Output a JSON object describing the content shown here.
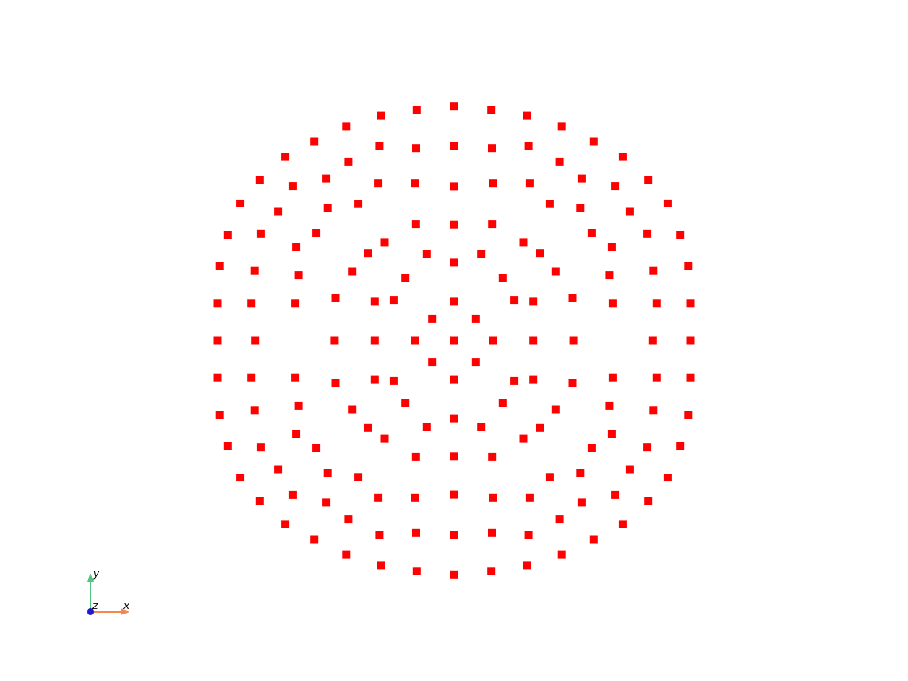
{
  "scene": {
    "background": "#ffffff"
  },
  "chart_data": {
    "type": "scatter",
    "title": "",
    "xlabel": "",
    "ylabel": "",
    "grid": false,
    "marker": "square",
    "color": "#ff0000",
    "xlim": [
      -1.0,
      1.0
    ],
    "ylim": [
      -1.0,
      1.0
    ],
    "x": [
      -0.6406,
      -0.5141,
      -0.3618,
      -0.1545,
      0.0,
      0.1545,
      0.3059,
      0.4554,
      0.5915,
      0.7206,
      0.8252,
      0.911,
      0.9672,
      0.9982,
      -0.6406,
      -0.5141,
      -0.3618,
      -0.1545,
      0.0,
      0.1545,
      0.3059,
      0.4554,
      0.5915,
      0.7206,
      0.8252,
      0.911,
      0.9672,
      0.9982,
      -0.6406,
      -0.5141,
      -0.3618,
      -0.1545,
      0.0,
      0.1545,
      0.3059,
      0.4554,
      0.5915,
      0.7206,
      0.8252,
      0.911,
      0.9672,
      0.9982
    ],
    "y": [
      0.0,
      0.0,
      0.0,
      0.0,
      0.0,
      0.0,
      0.0,
      0.0,
      0.0,
      0.0,
      0.0,
      0.0,
      0.0,
      0.0,
      0.0,
      0.0,
      0.0,
      0.0,
      0.0,
      0.0,
      0.0,
      0.0,
      0.0,
      0.0,
      0.0,
      0.0,
      0.0,
      0.0,
      0.0,
      0.0,
      0.0,
      0.0,
      0.0,
      0.0,
      0.0,
      0.0,
      0.0,
      0.0,
      0.0,
      0.0,
      0.0,
      0.0
    ],
    "points": [
      [
        0.0,
        -0.99
      ],
      [
        0.156,
        -0.973
      ],
      [
        0.309,
        -0.951
      ],
      [
        -0.156,
        -0.973
      ],
      [
        -0.309,
        -0.951
      ],
      [
        0.454,
        -0.903
      ],
      [
        0.589,
        -0.839
      ],
      [
        -0.454,
        -0.903
      ],
      [
        -0.589,
        -0.839
      ],
      [
        0.713,
        -0.775
      ],
      [
        0.819,
        -0.676
      ],
      [
        -0.713,
        -0.775
      ],
      [
        -0.819,
        -0.676
      ],
      [
        0.904,
        -0.579
      ],
      [
        0.954,
        -0.446
      ],
      [
        -0.904,
        -0.579
      ],
      [
        -0.954,
        -0.446
      ],
      [
        0.988,
        -0.313
      ],
      [
        1.0,
        -0.158
      ],
      [
        -0.988,
        -0.313
      ],
      [
        -1.0,
        -0.158
      ],
      [
        1.0,
        0.158
      ],
      [
        0.988,
        0.313
      ],
      [
        -1.0,
        0.158
      ],
      [
        -0.988,
        0.313
      ],
      [
        0.954,
        0.446
      ],
      [
        0.904,
        0.579
      ],
      [
        -0.954,
        0.446
      ],
      [
        -0.904,
        0.579
      ],
      [
        0.819,
        0.676
      ],
      [
        0.713,
        0.775
      ],
      [
        -0.819,
        0.676
      ],
      [
        -0.713,
        0.775
      ],
      [
        0.589,
        0.839
      ],
      [
        0.454,
        0.903
      ],
      [
        -0.589,
        0.839
      ],
      [
        -0.454,
        0.903
      ],
      [
        0.309,
        0.951
      ],
      [
        0.156,
        0.973
      ],
      [
        -0.309,
        0.951
      ],
      [
        -0.156,
        0.973
      ],
      [
        0.0,
        0.99
      ],
      [
        1.0,
        0.0
      ],
      [
        -1.0,
        0.0
      ],
      [
        0.0,
        -0.822
      ],
      [
        0.159,
        -0.814
      ],
      [
        -0.159,
        -0.814
      ],
      [
        0.315,
        -0.822
      ],
      [
        -0.315,
        -0.822
      ],
      [
        0.446,
        -0.755
      ],
      [
        -0.446,
        -0.755
      ],
      [
        0.541,
        -0.685
      ],
      [
        -0.541,
        -0.685
      ],
      [
        0.68,
        -0.653
      ],
      [
        -0.68,
        -0.653
      ],
      [
        0.743,
        -0.543
      ],
      [
        -0.743,
        -0.543
      ],
      [
        0.815,
        -0.452
      ],
      [
        -0.815,
        -0.452
      ],
      [
        0.842,
        -0.295
      ],
      [
        -0.842,
        -0.295
      ],
      [
        0.855,
        -0.158
      ],
      [
        -0.855,
        -0.158
      ],
      [
        0.84,
        0.0
      ],
      [
        -0.84,
        0.0
      ],
      [
        0.855,
        0.158
      ],
      [
        -0.855,
        0.158
      ],
      [
        0.842,
        0.295
      ],
      [
        -0.842,
        0.295
      ],
      [
        0.815,
        0.452
      ],
      [
        -0.815,
        0.452
      ],
      [
        0.743,
        0.543
      ],
      [
        -0.743,
        0.543
      ],
      [
        0.68,
        0.653
      ],
      [
        -0.68,
        0.653
      ],
      [
        0.541,
        0.685
      ],
      [
        -0.541,
        0.685
      ],
      [
        0.446,
        0.755
      ],
      [
        -0.446,
        0.755
      ],
      [
        0.315,
        0.822
      ],
      [
        -0.315,
        0.822
      ],
      [
        0.159,
        0.814
      ],
      [
        -0.159,
        0.814
      ],
      [
        0.0,
        0.822
      ],
      [
        0.0,
        -0.652
      ],
      [
        0.165,
        -0.664
      ],
      [
        -0.165,
        -0.664
      ],
      [
        0.32,
        -0.664
      ],
      [
        -0.32,
        -0.664
      ],
      [
        0.406,
        -0.576
      ],
      [
        -0.406,
        -0.576
      ],
      [
        0.535,
        -0.56
      ],
      [
        -0.535,
        -0.56
      ],
      [
        0.582,
        -0.455
      ],
      [
        -0.582,
        -0.455
      ],
      [
        0.668,
        -0.395
      ],
      [
        -0.668,
        -0.395
      ],
      [
        0.655,
        -0.275
      ],
      [
        -0.655,
        -0.275
      ],
      [
        0.672,
        -0.158
      ],
      [
        -0.672,
        -0.158
      ],
      [
        0.672,
        0.158
      ],
      [
        -0.672,
        0.158
      ],
      [
        0.655,
        0.275
      ],
      [
        -0.655,
        0.275
      ],
      [
        0.668,
        0.395
      ],
      [
        -0.668,
        0.395
      ],
      [
        0.582,
        0.455
      ],
      [
        -0.582,
        0.455
      ],
      [
        0.535,
        0.56
      ],
      [
        -0.535,
        0.56
      ],
      [
        0.406,
        0.576
      ],
      [
        -0.406,
        0.576
      ],
      [
        0.32,
        0.664
      ],
      [
        -0.32,
        0.664
      ],
      [
        0.165,
        0.664
      ],
      [
        -0.165,
        0.664
      ],
      [
        0.0,
        0.652
      ],
      [
        0.0,
        -0.49
      ],
      [
        0.16,
        -0.492
      ],
      [
        -0.16,
        -0.492
      ],
      [
        0.292,
        -0.416
      ],
      [
        -0.292,
        -0.416
      ],
      [
        0.365,
        -0.368
      ],
      [
        -0.365,
        -0.368
      ],
      [
        0.428,
        -0.292
      ],
      [
        -0.428,
        -0.292
      ],
      [
        0.502,
        -0.178
      ],
      [
        -0.502,
        -0.178
      ],
      [
        0.506,
        0.0
      ],
      [
        -0.506,
        0.0
      ],
      [
        0.502,
        0.178
      ],
      [
        -0.502,
        0.178
      ],
      [
        0.428,
        0.292
      ],
      [
        -0.428,
        0.292
      ],
      [
        0.365,
        0.368
      ],
      [
        -0.365,
        0.368
      ],
      [
        0.292,
        0.416
      ],
      [
        -0.292,
        0.416
      ],
      [
        0.16,
        0.492
      ],
      [
        -0.16,
        0.492
      ],
      [
        0.0,
        0.49
      ],
      [
        0.0,
        -0.33
      ],
      [
        0.115,
        -0.365
      ],
      [
        -0.115,
        -0.365
      ],
      [
        0.207,
        -0.264
      ],
      [
        -0.207,
        -0.264
      ],
      [
        0.253,
        -0.17
      ],
      [
        -0.253,
        -0.17
      ],
      [
        0.336,
        -0.165
      ],
      [
        -0.336,
        -0.165
      ],
      [
        0.336,
        0.0
      ],
      [
        -0.336,
        0.0
      ],
      [
        0.336,
        0.165
      ],
      [
        -0.336,
        0.165
      ],
      [
        0.253,
        0.17
      ],
      [
        -0.253,
        0.17
      ],
      [
        0.207,
        0.264
      ],
      [
        -0.207,
        0.264
      ],
      [
        0.115,
        0.365
      ],
      [
        -0.115,
        0.365
      ],
      [
        0.0,
        0.33
      ],
      [
        0.0,
        -0.165
      ],
      [
        0.091,
        -0.092
      ],
      [
        -0.091,
        -0.092
      ],
      [
        0.165,
        0.0
      ],
      [
        -0.165,
        0.0
      ],
      [
        0.091,
        0.092
      ],
      [
        -0.091,
        0.092
      ],
      [
        0.0,
        0.165
      ],
      [
        0.0,
        0.0
      ]
    ]
  },
  "orientation_axes": {
    "x_label": "x",
    "y_label": "y",
    "z_label": "z",
    "x_color": "#f4874b",
    "y_color": "#4fc57d",
    "z_color": "#1c1cd4"
  }
}
